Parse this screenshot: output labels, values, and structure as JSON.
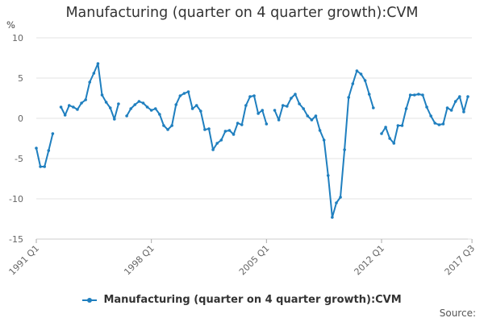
{
  "chart_data": {
    "type": "line",
    "title": "Manufacturing (quarter on 4 quarter growth):CVM",
    "ylabel": "%",
    "xlabel": "",
    "ylim": [
      -15,
      10
    ],
    "yticks": [
      10,
      5,
      0,
      -5,
      -10,
      -15
    ],
    "x_tick_labels": [
      {
        "label": "1991 Q1",
        "index": 0
      },
      {
        "label": "1998 Q1",
        "index": 28
      },
      {
        "label": "2005 Q1",
        "index": 56
      },
      {
        "label": "2012 Q1",
        "index": 84
      },
      {
        "label": "2017 Q3",
        "index": 106
      }
    ],
    "grid": true,
    "legend_position": "bottom-center",
    "series": [
      {
        "name": "Manufacturing (quarter on 4 quarter growth):CVM",
        "color": "#1f7fbf",
        "values": [
          -3.7,
          -6.0,
          -6.0,
          -4.0,
          -1.9,
          null,
          1.4,
          0.4,
          1.6,
          1.4,
          1.1,
          1.9,
          2.3,
          4.5,
          5.6,
          6.8,
          2.9,
          2.0,
          1.3,
          -0.1,
          1.8,
          null,
          0.3,
          1.2,
          1.7,
          2.1,
          1.9,
          1.4,
          1.0,
          1.2,
          0.5,
          -0.9,
          -1.4,
          -0.9,
          1.7,
          2.8,
          3.1,
          3.3,
          1.2,
          1.6,
          0.9,
          -1.4,
          -1.3,
          -3.9,
          -3.1,
          -2.7,
          -1.6,
          -1.5,
          -2.0,
          -0.6,
          -0.8,
          1.6,
          2.7,
          2.8,
          0.6,
          1.0,
          -0.7,
          null,
          1.0,
          -0.2,
          1.6,
          1.5,
          2.5,
          3.0,
          1.8,
          1.2,
          0.3,
          -0.2,
          0.3,
          -1.5,
          -2.7,
          -7.1,
          -12.3,
          -10.5,
          -9.8,
          -3.9,
          2.6,
          4.3,
          5.9,
          5.5,
          4.7,
          3.0,
          1.3,
          null,
          -1.9,
          -1.1,
          -2.5,
          -3.1,
          -0.9,
          -0.9,
          1.2,
          2.9,
          2.9,
          3.0,
          2.9,
          1.4,
          0.3,
          -0.6,
          -0.8,
          -0.7,
          1.3,
          1.0,
          2.1,
          2.7,
          0.8,
          2.7
        ]
      }
    ],
    "source_label": "Source:"
  }
}
